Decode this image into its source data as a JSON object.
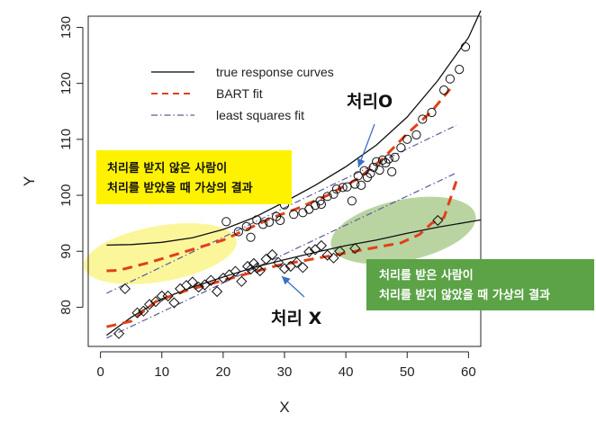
{
  "chart_data": {
    "type": "scatter",
    "xlabel": "X",
    "ylabel": "Y",
    "xlim": [
      -2,
      62
    ],
    "ylim": [
      73,
      132
    ],
    "x_ticks": [
      0,
      10,
      20,
      30,
      40,
      50,
      60
    ],
    "y_ticks": [
      80,
      90,
      100,
      110,
      120,
      130
    ],
    "legend": {
      "placement": "top-left",
      "items": [
        {
          "label": "true response curves",
          "style": "solid",
          "color": "#000000"
        },
        {
          "label": "BART fit",
          "style": "dashed",
          "color": "#e0401a"
        },
        {
          "label": "least squares fit",
          "style": "dash-dot",
          "color": "#5a5aa0"
        }
      ]
    },
    "true_curves": [
      {
        "group": "처리O",
        "x": [
          1,
          5,
          10,
          15,
          20,
          25,
          30,
          35,
          40,
          45,
          50,
          55,
          60,
          62
        ],
        "y": [
          91.1,
          91.2,
          91.6,
          92.4,
          93.9,
          96.0,
          98.8,
          101.8,
          105.1,
          109.0,
          114.0,
          120.5,
          128.2,
          133.0
        ]
      },
      {
        "group": "처리X",
        "x": [
          1,
          5,
          10,
          15,
          20,
          25,
          30,
          35,
          40,
          45,
          50,
          55,
          62
        ],
        "y": [
          75.0,
          78.2,
          81.5,
          83.6,
          85.4,
          87.1,
          88.5,
          89.8,
          91.0,
          92.0,
          93.2,
          94.3,
          95.6
        ]
      }
    ],
    "bart_fits": [
      {
        "group": "처리O",
        "x": [
          1,
          3,
          8,
          14,
          20,
          24,
          28,
          32,
          37,
          42,
          46,
          50,
          54,
          57
        ],
        "y": [
          86.5,
          86.6,
          88.0,
          90.0,
          92.0,
          94.0,
          96.0,
          97.6,
          100.0,
          103.0,
          106.5,
          111.0,
          115.0,
          119.0
        ]
      },
      {
        "group": "처리X",
        "x": [
          1,
          5,
          9,
          14,
          19,
          24,
          29,
          34,
          39,
          44,
          49,
          52,
          54,
          56,
          58
        ],
        "y": [
          76.5,
          77.5,
          81.0,
          83.0,
          84.5,
          86.0,
          87.5,
          88.5,
          89.5,
          90.5,
          91.5,
          93.0,
          95.0,
          96.0,
          102.5
        ]
      }
    ],
    "ls_fits": [
      {
        "group": "처리O",
        "x": [
          1,
          58
        ],
        "y": [
          82.5,
          112.5
        ]
      },
      {
        "group": "처리X",
        "x": [
          1,
          58
        ],
        "y": [
          74.5,
          104.0
        ]
      }
    ],
    "series": [
      {
        "name": "처리O",
        "marker": "circle",
        "x": [
          20.5,
          22.5,
          23.8,
          24.5,
          25.5,
          26.5,
          27.5,
          28.7,
          29.3,
          30,
          31.5,
          33,
          34,
          35,
          35.8,
          36,
          37,
          38,
          38.5,
          39.5,
          40.2,
          41,
          41.5,
          42,
          42.5,
          43,
          43.5,
          44,
          44.5,
          45,
          45.5,
          46,
          46.5,
          47,
          47.5,
          48,
          49,
          50,
          51.5,
          52.5,
          54,
          56,
          57,
          58.5,
          59.5
        ],
        "y": [
          95.3,
          93.5,
          94.4,
          92.5,
          95.6,
          94.8,
          95.2,
          96.2,
          95.5,
          98.3,
          96.6,
          96.9,
          97.5,
          98.2,
          99.0,
          98.4,
          99.8,
          100.2,
          101.1,
          101.4,
          101.5,
          99.0,
          102.0,
          103.5,
          101.8,
          104.4,
          103.2,
          103.9,
          105.0,
          106.0,
          104.5,
          106.3,
          105.8,
          106.5,
          104.2,
          106.8,
          108.5,
          110.0,
          110.8,
          113.6,
          114.8,
          118.8,
          120.8,
          122.5,
          126.5
        ]
      },
      {
        "name": "처리X",
        "marker": "diamond",
        "x": [
          3,
          4,
          6,
          7,
          8,
          9,
          10,
          11,
          12,
          13,
          14,
          15,
          16,
          17,
          18,
          19,
          20,
          21,
          22,
          23,
          24,
          24.5,
          25,
          25.5,
          26,
          27,
          28,
          29,
          30,
          31,
          32,
          33,
          34,
          35,
          36,
          37,
          38,
          39,
          41.5,
          55
        ],
        "y": [
          75.3,
          83.3,
          79.0,
          79.3,
          80.5,
          81.0,
          82.0,
          82.0,
          80.8,
          83.3,
          83.9,
          84.5,
          83.6,
          84.0,
          84.8,
          82.8,
          85.2,
          85.8,
          86.4,
          84.6,
          87.3,
          86.8,
          87.8,
          87.0,
          86.5,
          88.6,
          89.4,
          88.0,
          86.9,
          87.3,
          88.0,
          87.1,
          89.9,
          90.3,
          91.0,
          89.3,
          88.8,
          90.0,
          90.5,
          95.5
        ]
      }
    ]
  },
  "annotations": {
    "group_treated_label": "처리O",
    "group_untreated_label": "처리 X",
    "yellow_box_lines": [
      "처리를 받지 않은 사람이",
      "처리를 받았을 때 가상의 결과"
    ],
    "green_box_lines": [
      "처리를 받은 사람이",
      "처리를 받지 않았을 때 가상의 결과"
    ],
    "colors": {
      "yellow_box": "#fff200",
      "green_box": "#5ba346",
      "yellow_ellipse": "#fbf48a",
      "green_ellipse": "#a8c98a",
      "arrow": "#3a6fc4",
      "bart": "#e0401a",
      "ls": "#5a5aa0"
    }
  }
}
